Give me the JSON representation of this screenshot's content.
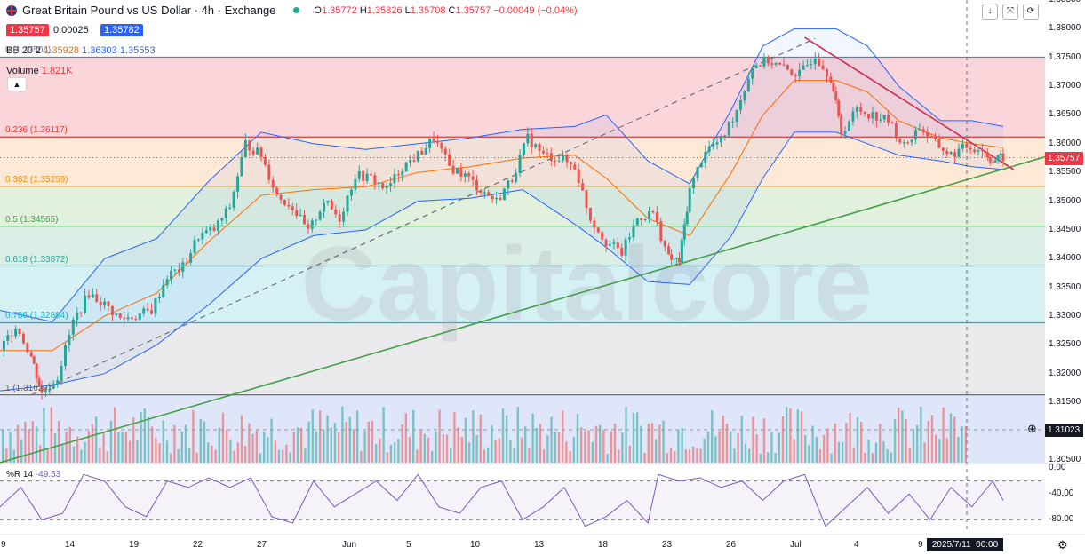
{
  "header": {
    "title": "Great Britain Pound vs US Dollar · 4h · Exchange",
    "ohlc": [
      {
        "key": "O",
        "value": "1.35772"
      },
      {
        "key": "H",
        "value": "1.35826"
      },
      {
        "key": "L",
        "value": "1.35708"
      },
      {
        "key": "C",
        "value": "1.35757"
      }
    ],
    "change": "−0.00049 (−0.04%)",
    "sell_price": "1.35757",
    "spread": "0.00025",
    "buy_price": "1.35782"
  },
  "indicators": {
    "bb_label": "BB 20 2",
    "bb_values": [
      "1.35928",
      "1.36303",
      "1.35553"
    ],
    "bb_prev": "0 (1.37504)",
    "volume_label": "Volume",
    "volume_value": "1.821K",
    "wpr_label": "%R 14",
    "wpr_value": "-49.53"
  },
  "watermark": "Capitalcore",
  "colors": {
    "up": "#26a69a",
    "down": "#ef5350",
    "bb": "#2962ff",
    "basis": "#ff6d00",
    "resistance": "#d12f4f",
    "support": "#43a047",
    "wpr": "#7e57c2",
    "accent": "#2962ff"
  },
  "chart_data": {
    "type": "line",
    "title": "Great Britain Pound vs US Dollar · 4h · Exchange",
    "xlabel": "",
    "ylabel": "",
    "ylim": [
      1.3045,
      1.385
    ],
    "x_ticks": [
      "9",
      "14",
      "19",
      "22",
      "27",
      "Jun",
      "5",
      "10",
      "13",
      "18",
      "23",
      "26",
      "Jul",
      "4",
      "9"
    ],
    "x_cursor_label": "2025/7/11  00:00",
    "y_ticks": [
      "1.38500",
      "1.38000",
      "1.37500",
      "1.37000",
      "1.36500",
      "1.36000",
      "1.35500",
      "1.35000",
      "1.34500",
      "1.34000",
      "1.33500",
      "1.33000",
      "1.32500",
      "1.32000",
      "1.31500",
      "1.31023",
      "1.30500"
    ],
    "current_price": "1.35757",
    "crosshair_price": "1.31023",
    "fibonacci": [
      {
        "label": "0 (1.37504)",
        "value": 1.37504,
        "fill": "#f8c7cc"
      },
      {
        "label": "0.236 (1.36117)",
        "value": 1.36117,
        "fill": "#fde2c8"
      },
      {
        "label": "0.382 (1.35259)",
        "value": 1.35259,
        "fill": "#d7ecd3"
      },
      {
        "label": "0.5 (1.34565)",
        "value": 1.34565,
        "fill": "#cfe9df"
      },
      {
        "label": "0.618 (1.33872)",
        "value": 1.33872,
        "fill": "#c8ecf0"
      },
      {
        "label": "0.786 (1.32884)",
        "value": 1.32884,
        "fill": "#e3e3e6"
      },
      {
        "label": "1 (1.31629)",
        "value": 1.31629,
        "fill": "#d5def7"
      }
    ],
    "trendlines": [
      {
        "name": "support",
        "from": [
          0,
          1.3045
        ],
        "to": [
          1,
          1.3577
        ]
      },
      {
        "name": "resistance",
        "from": [
          0.77,
          1.3785
        ],
        "to": [
          0.97,
          1.3555
        ]
      },
      {
        "name": "dashed",
        "from": [
          0.03,
          1.3163
        ],
        "to": [
          0.78,
          1.3783
        ]
      }
    ],
    "close_path": [
      [
        0.0,
        1.324
      ],
      [
        0.015,
        1.3285
      ],
      [
        0.03,
        1.323
      ],
      [
        0.04,
        1.3165
      ],
      [
        0.055,
        1.3195
      ],
      [
        0.07,
        1.329
      ],
      [
        0.085,
        1.334
      ],
      [
        0.1,
        1.332
      ],
      [
        0.115,
        1.3295
      ],
      [
        0.13,
        1.33
      ],
      [
        0.145,
        1.331
      ],
      [
        0.16,
        1.337
      ],
      [
        0.175,
        1.3385
      ],
      [
        0.19,
        1.344
      ],
      [
        0.205,
        1.345
      ],
      [
        0.22,
        1.349
      ],
      [
        0.235,
        1.36
      ],
      [
        0.25,
        1.358
      ],
      [
        0.265,
        1.351
      ],
      [
        0.28,
        1.349
      ],
      [
        0.295,
        1.3445
      ],
      [
        0.31,
        1.35
      ],
      [
        0.325,
        1.347
      ],
      [
        0.34,
        1.3545
      ],
      [
        0.355,
        1.354
      ],
      [
        0.37,
        1.352
      ],
      [
        0.385,
        1.356
      ],
      [
        0.4,
        1.358
      ],
      [
        0.415,
        1.361
      ],
      [
        0.43,
        1.356
      ],
      [
        0.445,
        1.3545
      ],
      [
        0.46,
        1.352
      ],
      [
        0.475,
        1.35
      ],
      [
        0.49,
        1.354
      ],
      [
        0.505,
        1.361
      ],
      [
        0.52,
        1.358
      ],
      [
        0.535,
        1.3575
      ],
      [
        0.55,
        1.356
      ],
      [
        0.565,
        1.347
      ],
      [
        0.58,
        1.343
      ],
      [
        0.595,
        1.341
      ],
      [
        0.61,
        1.347
      ],
      [
        0.625,
        1.348
      ],
      [
        0.64,
        1.34
      ],
      [
        0.65,
        1.3395
      ],
      [
        0.66,
        1.352
      ],
      [
        0.675,
        1.359
      ],
      [
        0.69,
        1.3605
      ],
      [
        0.705,
        1.366
      ],
      [
        0.72,
        1.3735
      ],
      [
        0.735,
        1.3745
      ],
      [
        0.75,
        1.373
      ],
      [
        0.765,
        1.372
      ],
      [
        0.78,
        1.3755
      ],
      [
        0.795,
        1.3715
      ],
      [
        0.805,
        1.362
      ],
      [
        0.82,
        1.366
      ],
      [
        0.835,
        1.365
      ],
      [
        0.85,
        1.364
      ],
      [
        0.865,
        1.3595
      ],
      [
        0.88,
        1.363
      ],
      [
        0.895,
        1.36
      ],
      [
        0.91,
        1.358
      ],
      [
        0.925,
        1.3595
      ],
      [
        0.94,
        1.359
      ],
      [
        0.95,
        1.357
      ],
      [
        0.96,
        1.3576
      ]
    ],
    "bollinger": {
      "upper": [
        [
          0,
          1.331
        ],
        [
          0.05,
          1.329
        ],
        [
          0.1,
          1.34
        ],
        [
          0.15,
          1.3435
        ],
        [
          0.2,
          1.3535
        ],
        [
          0.25,
          1.362
        ],
        [
          0.3,
          1.36
        ],
        [
          0.35,
          1.359
        ],
        [
          0.4,
          1.36
        ],
        [
          0.45,
          1.361
        ],
        [
          0.5,
          1.3625
        ],
        [
          0.55,
          1.363
        ],
        [
          0.58,
          1.365
        ],
        [
          0.62,
          1.357
        ],
        [
          0.66,
          1.353
        ],
        [
          0.7,
          1.366
        ],
        [
          0.73,
          1.377
        ],
        [
          0.76,
          1.38
        ],
        [
          0.8,
          1.38
        ],
        [
          0.83,
          1.377
        ],
        [
          0.86,
          1.37
        ],
        [
          0.9,
          1.364
        ],
        [
          0.93,
          1.364
        ],
        [
          0.96,
          1.363
        ]
      ],
      "basis": [
        [
          0,
          1.324
        ],
        [
          0.05,
          1.324
        ],
        [
          0.1,
          1.33
        ],
        [
          0.15,
          1.334
        ],
        [
          0.2,
          1.343
        ],
        [
          0.25,
          1.351
        ],
        [
          0.3,
          1.352
        ],
        [
          0.35,
          1.3525
        ],
        [
          0.4,
          1.355
        ],
        [
          0.45,
          1.356
        ],
        [
          0.5,
          1.3575
        ],
        [
          0.55,
          1.358
        ],
        [
          0.58,
          1.354
        ],
        [
          0.62,
          1.347
        ],
        [
          0.66,
          1.344
        ],
        [
          0.7,
          1.355
        ],
        [
          0.73,
          1.365
        ],
        [
          0.76,
          1.371
        ],
        [
          0.8,
          1.371
        ],
        [
          0.83,
          1.369
        ],
        [
          0.86,
          1.364
        ],
        [
          0.9,
          1.361
        ],
        [
          0.93,
          1.36
        ],
        [
          0.96,
          1.3593
        ]
      ],
      "lower": [
        [
          0,
          1.317
        ],
        [
          0.05,
          1.318
        ],
        [
          0.1,
          1.32
        ],
        [
          0.15,
          1.325
        ],
        [
          0.2,
          1.332
        ],
        [
          0.25,
          1.34
        ],
        [
          0.3,
          1.344
        ],
        [
          0.35,
          1.345
        ],
        [
          0.4,
          1.35
        ],
        [
          0.45,
          1.3505
        ],
        [
          0.5,
          1.352
        ],
        [
          0.55,
          1.346
        ],
        [
          0.58,
          1.342
        ],
        [
          0.62,
          1.336
        ],
        [
          0.66,
          1.3355
        ],
        [
          0.7,
          1.344
        ],
        [
          0.73,
          1.354
        ],
        [
          0.76,
          1.362
        ],
        [
          0.8,
          1.362
        ],
        [
          0.83,
          1.36
        ],
        [
          0.86,
          1.358
        ],
        [
          0.9,
          1.357
        ],
        [
          0.93,
          1.356
        ],
        [
          0.96,
          1.3555
        ]
      ]
    },
    "wpr": {
      "ylim": [
        -100,
        0
      ],
      "y_ticks": [
        "0.00",
        "-40.00",
        "-80.00"
      ],
      "levels": [
        -20,
        -80
      ],
      "values": [
        [
          0,
          -60
        ],
        [
          0.02,
          -30
        ],
        [
          0.04,
          -80
        ],
        [
          0.06,
          -70
        ],
        [
          0.08,
          -10
        ],
        [
          0.1,
          -20
        ],
        [
          0.12,
          -60
        ],
        [
          0.14,
          -75
        ],
        [
          0.16,
          -20
        ],
        [
          0.18,
          -30
        ],
        [
          0.2,
          -15
        ],
        [
          0.22,
          -30
        ],
        [
          0.24,
          -15
        ],
        [
          0.26,
          -75
        ],
        [
          0.28,
          -85
        ],
        [
          0.3,
          -20
        ],
        [
          0.32,
          -60
        ],
        [
          0.34,
          -40
        ],
        [
          0.36,
          -20
        ],
        [
          0.38,
          -50
        ],
        [
          0.4,
          -10
        ],
        [
          0.42,
          -60
        ],
        [
          0.44,
          -70
        ],
        [
          0.46,
          -30
        ],
        [
          0.48,
          -20
        ],
        [
          0.5,
          -80
        ],
        [
          0.52,
          -60
        ],
        [
          0.54,
          -30
        ],
        [
          0.56,
          -90
        ],
        [
          0.58,
          -75
        ],
        [
          0.6,
          -50
        ],
        [
          0.62,
          -85
        ],
        [
          0.63,
          -10
        ],
        [
          0.65,
          -20
        ],
        [
          0.67,
          -15
        ],
        [
          0.69,
          -30
        ],
        [
          0.71,
          -20
        ],
        [
          0.73,
          -50
        ],
        [
          0.75,
          -20
        ],
        [
          0.77,
          -10
        ],
        [
          0.79,
          -90
        ],
        [
          0.81,
          -60
        ],
        [
          0.83,
          -30
        ],
        [
          0.85,
          -70
        ],
        [
          0.87,
          -40
        ],
        [
          0.89,
          -80
        ],
        [
          0.91,
          -30
        ],
        [
          0.93,
          -60
        ],
        [
          0.95,
          -20
        ],
        [
          0.96,
          -50
        ]
      ]
    }
  }
}
